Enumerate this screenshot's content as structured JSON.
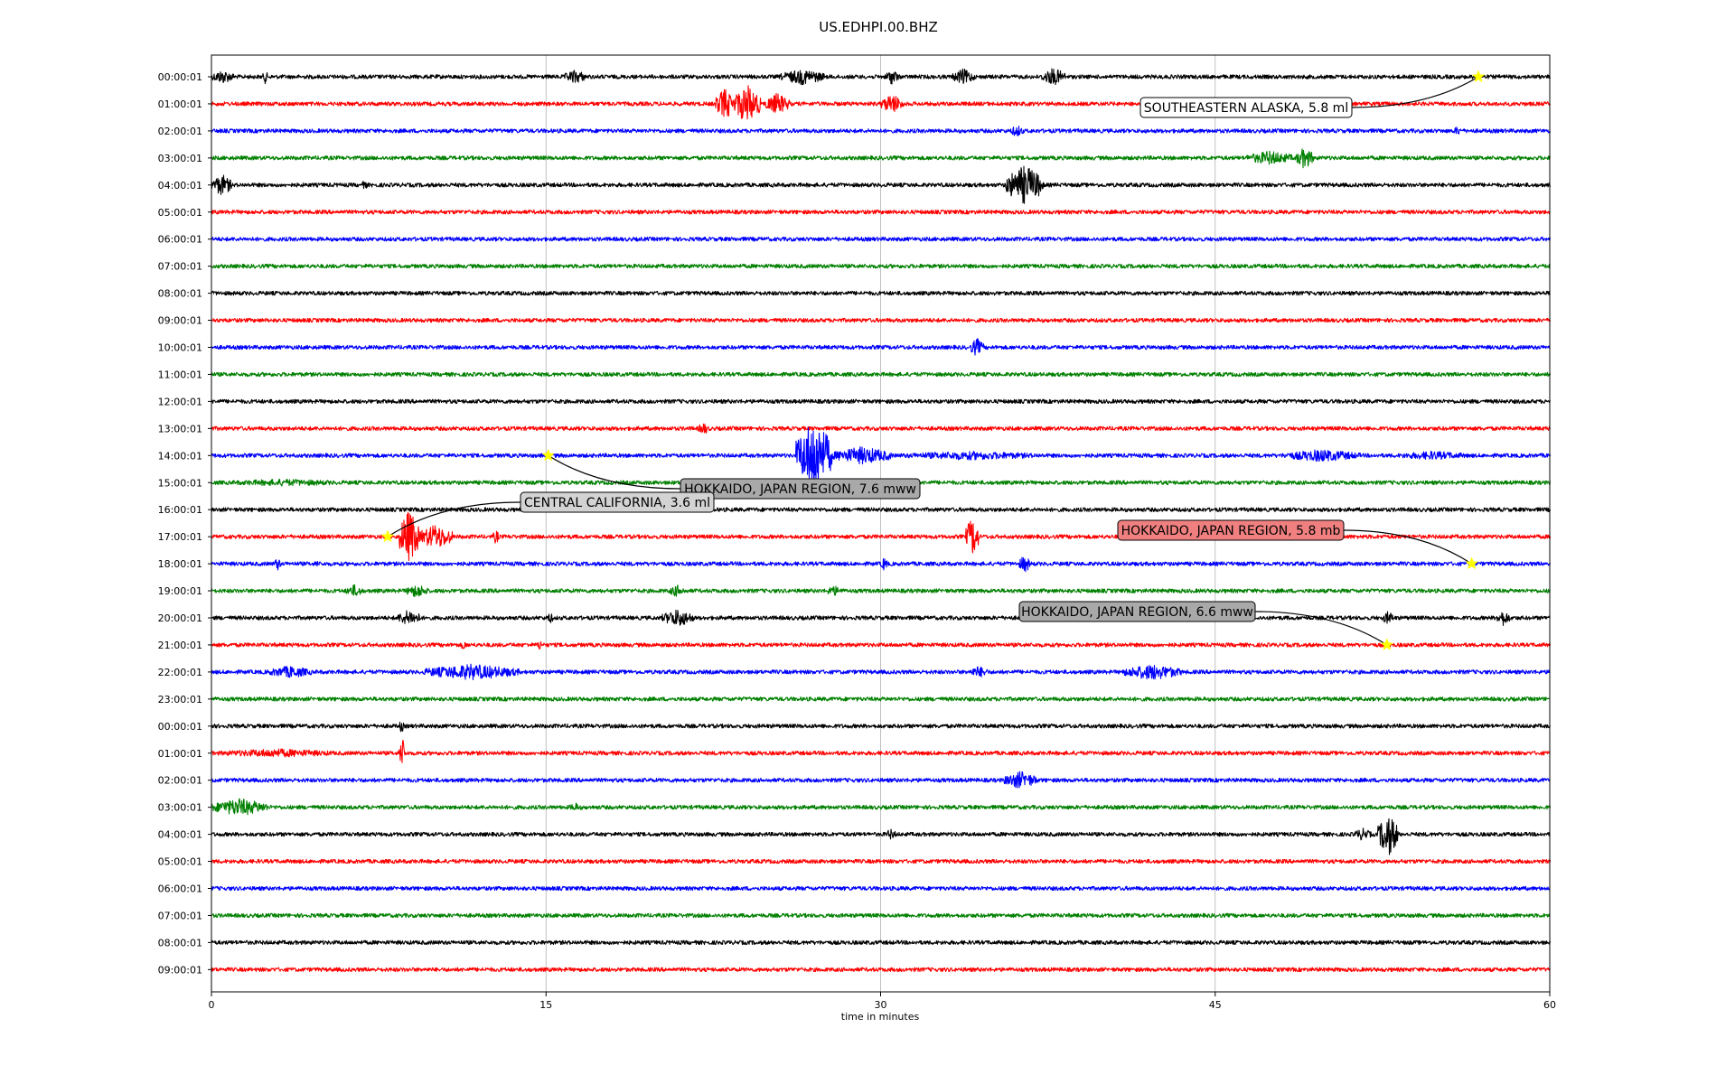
{
  "chart_data": {
    "type": "line",
    "title": "US.EDHPI.00.BHZ",
    "xlabel": "time in minutes",
    "ylabel": "",
    "xlim": [
      0,
      60
    ],
    "x_ticks": [
      0,
      15,
      30,
      45,
      60
    ],
    "grid": "vertical lines at x ticks",
    "trace_colors": [
      "#000000",
      "#ff0000",
      "#0000ff",
      "#008000"
    ],
    "rows": [
      "00:00:01",
      "01:00:01",
      "02:00:01",
      "03:00:01",
      "04:00:01",
      "05:00:01",
      "06:00:01",
      "07:00:01",
      "08:00:01",
      "09:00:01",
      "10:00:01",
      "11:00:01",
      "12:00:01",
      "13:00:01",
      "14:00:01",
      "15:00:01",
      "16:00:01",
      "17:00:01",
      "18:00:01",
      "19:00:01",
      "20:00:01",
      "21:00:01",
      "22:00:01",
      "23:00:01",
      "00:00:01",
      "01:00:01",
      "02:00:01",
      "03:00:01",
      "04:00:01",
      "05:00:01",
      "06:00:01",
      "07:00:01",
      "08:00:01",
      "09:00:01"
    ],
    "events": [
      {
        "label": "SOUTHEASTERN ALASKA, 5.8 ml",
        "row": 0,
        "minute": 56.8,
        "box_color": "#ffffff"
      },
      {
        "label": "HOKKAIDO, JAPAN REGION, 7.6 mww",
        "row": 14,
        "minute": 15.1,
        "box_color": "#a9a9a9"
      },
      {
        "label": "CENTRAL CALIFORNIA, 3.6 ml",
        "row": 17,
        "minute": 7.9,
        "box_color": "#d3d3d3"
      },
      {
        "label": "HOKKAIDO, JAPAN REGION, 5.8 mb",
        "row": 18,
        "minute": 56.5,
        "box_color": "#f08080"
      },
      {
        "label": "HOKKAIDO, JAPAN REGION, 6.6 mww",
        "row": 21,
        "minute": 52.7,
        "box_color": "#a9a9a9"
      }
    ],
    "bursts": [
      {
        "row": 0,
        "start": 0.0,
        "end": 1.0,
        "amp": 8
      },
      {
        "row": 0,
        "start": 2.3,
        "end": 2.5,
        "amp": 8
      },
      {
        "row": 0,
        "start": 15.8,
        "end": 16.8,
        "amp": 8
      },
      {
        "row": 0,
        "start": 25.5,
        "end": 27.5,
        "amp": 9
      },
      {
        "row": 0,
        "start": 30.2,
        "end": 30.8,
        "amp": 9
      },
      {
        "row": 0,
        "start": 33.2,
        "end": 34.2,
        "amp": 9
      },
      {
        "row": 0,
        "start": 37.2,
        "end": 38.3,
        "amp": 10
      },
      {
        "row": 1,
        "start": 22.6,
        "end": 23.4,
        "amp": 18
      },
      {
        "row": 1,
        "start": 23.4,
        "end": 24.6,
        "amp": 22
      },
      {
        "row": 1,
        "start": 24.8,
        "end": 25.9,
        "amp": 12
      },
      {
        "row": 1,
        "start": 30.0,
        "end": 31.0,
        "amp": 11
      },
      {
        "row": 1,
        "start": 42.1,
        "end": 42.3,
        "amp": 9
      },
      {
        "row": 1,
        "start": 45.0,
        "end": 47.0,
        "amp": 7
      },
      {
        "row": 2,
        "start": 35.8,
        "end": 36.4,
        "amp": 7
      },
      {
        "row": 2,
        "start": 55.7,
        "end": 56.0,
        "amp": 6
      },
      {
        "row": 3,
        "start": 46.4,
        "end": 48.5,
        "amp": 8
      },
      {
        "row": 3,
        "start": 48.6,
        "end": 49.4,
        "amp": 12
      },
      {
        "row": 4,
        "start": 0.0,
        "end": 0.9,
        "amp": 12
      },
      {
        "row": 4,
        "start": 6.7,
        "end": 7.0,
        "amp": 5
      },
      {
        "row": 4,
        "start": 35.6,
        "end": 37.3,
        "amp": 22
      },
      {
        "row": 10,
        "start": 34.0,
        "end": 34.6,
        "amp": 10
      },
      {
        "row": 13,
        "start": 21.8,
        "end": 22.3,
        "amp": 7
      },
      {
        "row": 14,
        "start": 26.2,
        "end": 27.8,
        "amp": 40
      },
      {
        "row": 14,
        "start": 27.8,
        "end": 30.5,
        "amp": 10
      },
      {
        "row": 14,
        "start": 30.5,
        "end": 37.5,
        "amp": 5
      },
      {
        "row": 14,
        "start": 48.0,
        "end": 51.5,
        "amp": 7
      },
      {
        "row": 14,
        "start": 53.0,
        "end": 56.5,
        "amp": 5
      },
      {
        "row": 15,
        "start": 0.0,
        "end": 6.5,
        "amp": 4
      },
      {
        "row": 17,
        "start": 8.4,
        "end": 9.3,
        "amp": 30
      },
      {
        "row": 17,
        "start": 9.3,
        "end": 10.8,
        "amp": 14
      },
      {
        "row": 17,
        "start": 12.6,
        "end": 12.9,
        "amp": 8
      },
      {
        "row": 17,
        "start": 33.8,
        "end": 34.4,
        "amp": 22
      },
      {
        "row": 17,
        "start": 50.2,
        "end": 50.4,
        "amp": 6
      },
      {
        "row": 18,
        "start": 2.8,
        "end": 3.1,
        "amp": 8
      },
      {
        "row": 18,
        "start": 4.6,
        "end": 4.8,
        "amp": 5
      },
      {
        "row": 18,
        "start": 30.0,
        "end": 30.3,
        "amp": 8
      },
      {
        "row": 18,
        "start": 36.2,
        "end": 36.7,
        "amp": 10
      },
      {
        "row": 19,
        "start": 6.0,
        "end": 6.8,
        "amp": 7
      },
      {
        "row": 19,
        "start": 8.7,
        "end": 9.7,
        "amp": 8
      },
      {
        "row": 19,
        "start": 20.5,
        "end": 21.2,
        "amp": 7
      },
      {
        "row": 19,
        "start": 27.5,
        "end": 28.3,
        "amp": 6
      },
      {
        "row": 20,
        "start": 8.3,
        "end": 9.4,
        "amp": 9
      },
      {
        "row": 20,
        "start": 15.0,
        "end": 15.3,
        "amp": 7
      },
      {
        "row": 20,
        "start": 20.2,
        "end": 21.6,
        "amp": 10
      },
      {
        "row": 20,
        "start": 52.5,
        "end": 53.0,
        "amp": 8
      },
      {
        "row": 20,
        "start": 57.6,
        "end": 58.2,
        "amp": 9
      },
      {
        "row": 21,
        "start": 11.2,
        "end": 11.4,
        "amp": 7
      },
      {
        "row": 21,
        "start": 14.6,
        "end": 14.8,
        "amp": 7
      },
      {
        "row": 22,
        "start": 2.5,
        "end": 4.5,
        "amp": 7
      },
      {
        "row": 22,
        "start": 9.5,
        "end": 13.8,
        "amp": 9
      },
      {
        "row": 22,
        "start": 34.0,
        "end": 34.8,
        "amp": 7
      },
      {
        "row": 22,
        "start": 40.8,
        "end": 43.5,
        "amp": 9
      },
      {
        "row": 24,
        "start": 8.4,
        "end": 8.6,
        "amp": 8
      },
      {
        "row": 25,
        "start": 0.0,
        "end": 5.8,
        "amp": 5
      },
      {
        "row": 25,
        "start": 8.4,
        "end": 8.7,
        "amp": 18
      },
      {
        "row": 26,
        "start": 35.5,
        "end": 37.0,
        "amp": 10
      },
      {
        "row": 27,
        "start": 0.0,
        "end": 2.5,
        "amp": 10
      },
      {
        "row": 27,
        "start": 16.0,
        "end": 16.6,
        "amp": 5
      },
      {
        "row": 28,
        "start": 51.2,
        "end": 52.0,
        "amp": 7
      },
      {
        "row": 28,
        "start": 52.3,
        "end": 53.2,
        "amp": 24
      },
      {
        "row": 28,
        "start": 30.2,
        "end": 30.7,
        "amp": 6
      }
    ]
  }
}
